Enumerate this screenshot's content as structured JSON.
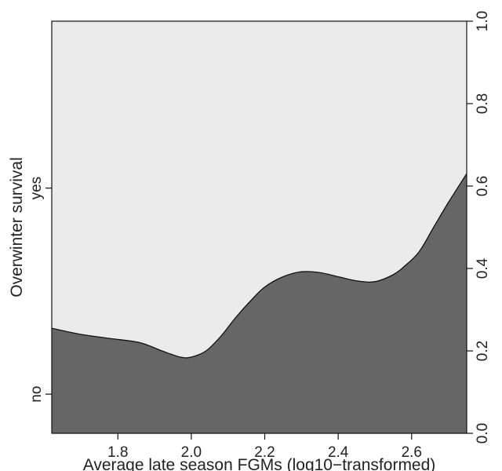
{
  "chart_data": {
    "type": "area",
    "xlabel": "Average late season FGMs (log10−transformed)",
    "ylabel": "Overwinter survival",
    "xlim": [
      1.62,
      2.75
    ],
    "ylim": [
      0,
      1
    ],
    "x_ticks": [
      "1.8",
      "2.0",
      "2.2",
      "2.4",
      "2.6"
    ],
    "x_tick_values": [
      1.8,
      2.0,
      2.2,
      2.4,
      2.6
    ],
    "y_left_ticks": [
      {
        "label": "no",
        "value": 0.095
      },
      {
        "label": "yes",
        "value": 0.595
      }
    ],
    "y_right_ticks": [
      "0.0",
      "0.2",
      "0.4",
      "0.6",
      "0.8",
      "1.0"
    ],
    "y_right_tick_values": [
      0.0,
      0.2,
      0.4,
      0.6,
      0.8,
      1.0
    ],
    "series": [
      {
        "x": [
          1.62,
          1.7,
          1.78,
          1.86,
          1.92,
          1.97,
          2.0,
          2.04,
          2.08,
          2.12,
          2.16,
          2.2,
          2.25,
          2.3,
          2.35,
          2.4,
          2.45,
          2.5,
          2.55,
          2.58,
          2.62,
          2.66,
          2.7,
          2.75
        ],
        "y": [
          0.255,
          0.24,
          0.23,
          0.22,
          0.2,
          0.185,
          0.185,
          0.2,
          0.235,
          0.28,
          0.32,
          0.355,
          0.38,
          0.392,
          0.39,
          0.38,
          0.37,
          0.368,
          0.385,
          0.405,
          0.44,
          0.5,
          0.56,
          0.63
        ]
      }
    ],
    "colors": {
      "lower_fill": "#666666",
      "upper_fill": "#ebebeb",
      "line": "#111111"
    },
    "grid": false
  }
}
